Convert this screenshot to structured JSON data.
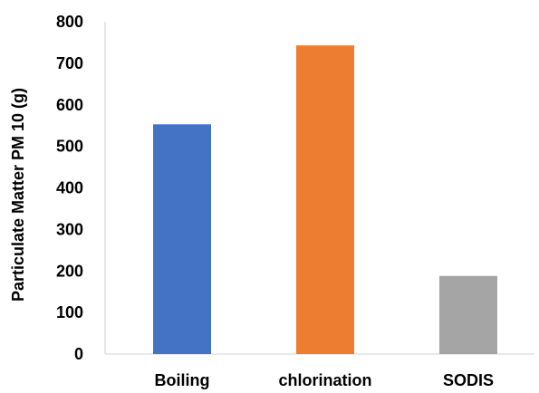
{
  "chart_data": {
    "type": "bar",
    "categories": [
      "Boiling",
      "chlorination",
      "SODIS"
    ],
    "values": [
      553,
      743,
      188
    ],
    "bar_colors": [
      "#4472C4",
      "#ED7D31",
      "#A5A5A5"
    ],
    "ylabel": "Particulate Matter PM 10 (g)",
    "xlabel": "",
    "ylim": [
      0,
      800
    ],
    "yticks": [
      "0",
      "100",
      "200",
      "300",
      "400",
      "500",
      "600",
      "700",
      "800"
    ],
    "grid": false
  }
}
